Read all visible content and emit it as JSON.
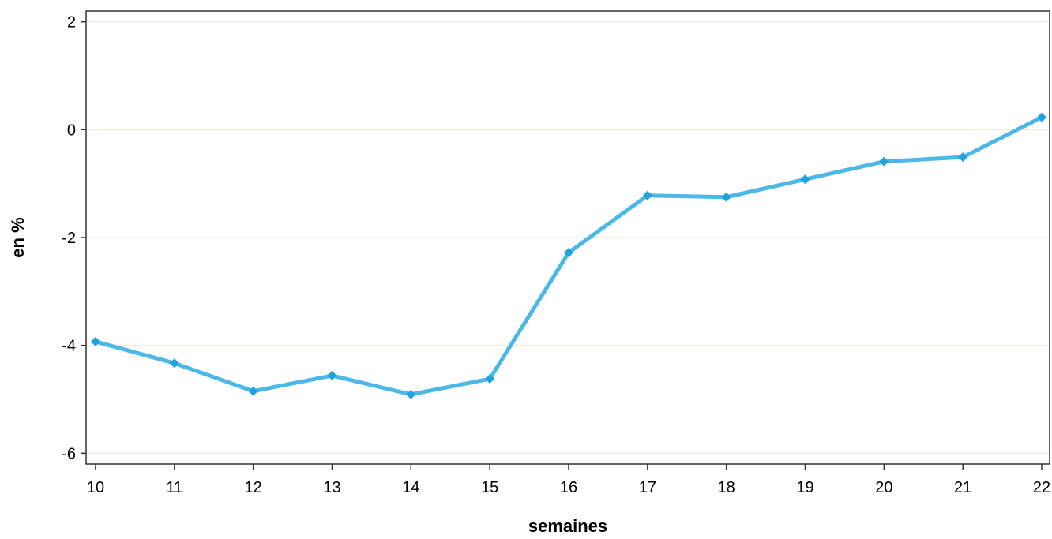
{
  "chart_data": {
    "type": "line",
    "title": "",
    "xlabel": "semaines",
    "ylabel": "en %",
    "x": [
      10,
      11,
      12,
      13,
      14,
      15,
      16,
      17,
      18,
      19,
      20,
      21,
      22
    ],
    "x_ticks": [
      "10",
      "11",
      "12",
      "13",
      "14",
      "15",
      "16",
      "17",
      "18",
      "19",
      "20",
      "21",
      "22"
    ],
    "y_ticks": [
      "2",
      "0",
      "-2",
      "-4",
      "-6"
    ],
    "y_tick_values": [
      2,
      0,
      -2,
      -4,
      -6
    ],
    "xlim": [
      9.88,
      22.1
    ],
    "ylim": [
      -6.2,
      2.2
    ],
    "grid": "horizontal",
    "legend": "none",
    "series": [
      {
        "values": [
          -3.93,
          -4.33,
          -4.85,
          -4.56,
          -4.91,
          -4.62,
          -2.28,
          -1.22,
          -1.25,
          -0.92,
          -0.59,
          -0.51,
          0.23
        ],
        "color": "#4BB8E8",
        "marker_color": "#1FA3E0",
        "marker": "diamond"
      }
    ],
    "colors": {
      "grid": "#EFEFE0",
      "frame": "#333333"
    }
  }
}
